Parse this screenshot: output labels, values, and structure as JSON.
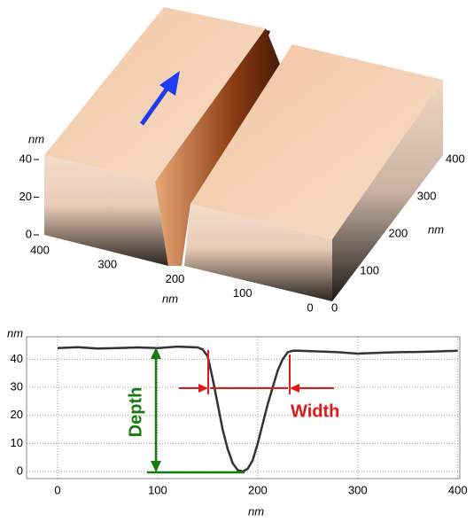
{
  "chart_data": [
    {
      "type": "surface3d",
      "zlabel": "nm",
      "xlabel": "nm",
      "ylabel": "nm",
      "zlim": [
        0,
        40
      ],
      "zticks": [
        0,
        20,
        40
      ],
      "xlim": [
        0,
        400
      ],
      "xticks": [
        400,
        300,
        200,
        100,
        0
      ],
      "ylim": [
        0,
        400
      ],
      "yticks": [
        0,
        100,
        200,
        300,
        400
      ]
    },
    {
      "type": "line",
      "ylabel": "nm",
      "xlabel": "nm",
      "annotations": [
        "Depth",
        "Width"
      ],
      "color": "#333333",
      "grid": true,
      "xlim": [
        -31,
        402
      ],
      "xticks": [
        0,
        100,
        200,
        300,
        400
      ],
      "ylim": [
        -2.5,
        48
      ],
      "yticks": [
        0,
        10,
        20,
        30,
        40
      ],
      "x": [
        0,
        20,
        40,
        60,
        80,
        100,
        120,
        140,
        145,
        150,
        155,
        160,
        165,
        170,
        175,
        180,
        185,
        190,
        195,
        200,
        205,
        210,
        215,
        220,
        225,
        230,
        235,
        240,
        260,
        280,
        300,
        320,
        340,
        360,
        380,
        400
      ],
      "values": [
        44,
        44.3,
        43.8,
        44,
        44.2,
        44,
        44.5,
        44.2,
        43.5,
        41,
        33,
        24,
        15,
        8,
        3,
        0.5,
        0,
        1,
        4,
        10,
        17,
        24,
        30,
        36,
        40,
        42.5,
        43,
        43,
        42.8,
        42.5,
        42,
        42.3,
        42.5,
        42.6,
        42.8,
        43
      ]
    }
  ]
}
